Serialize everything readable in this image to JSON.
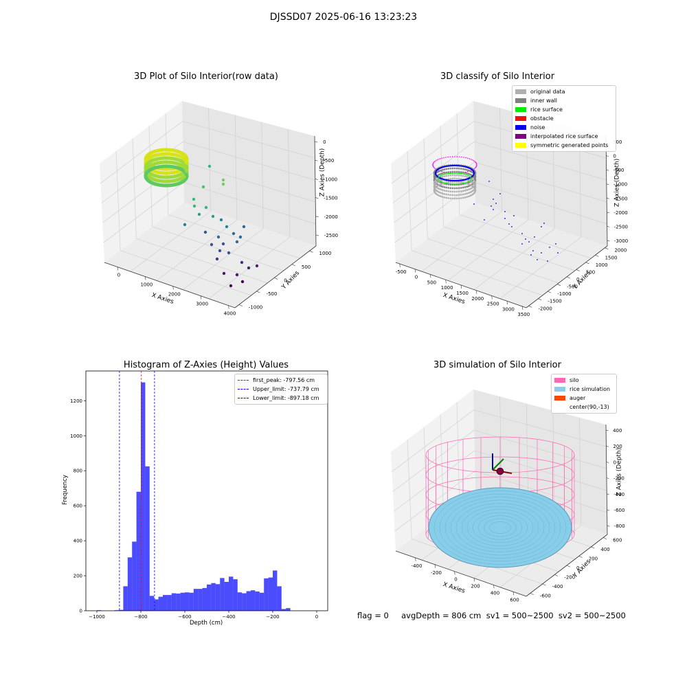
{
  "suptitle": "DJSSD07 2025-06-16 13:23:23",
  "panels": {
    "raw3d": {
      "title": "3D Plot of Silo Interior(row data)",
      "xlabel": "X Axies",
      "ylabel": "Y Axies",
      "zlabel": "Z Axies (Depth)",
      "xticks": [
        "0",
        "1000",
        "2000",
        "3000",
        "4000"
      ],
      "yticks": [
        "-1000",
        "-500",
        "0",
        "500",
        "1000"
      ],
      "zticks": [
        "0",
        "-500",
        "-1000",
        "-1500",
        "-2000",
        "-2500"
      ]
    },
    "classify3d": {
      "title": "3D classify of Silo Interior",
      "xlabel": "X Axies",
      "ylabel": "Y Axies",
      "zlabel": "Z Axies (Depth)",
      "xticks": [
        "-500",
        "0",
        "500",
        "1000",
        "1500",
        "2000",
        "2500",
        "3000",
        "3500"
      ],
      "yticks": [
        "-2000",
        "-1500",
        "-1000",
        "-500",
        "0",
        "500",
        "1000",
        "1500",
        "2000"
      ],
      "zticks": [
        "500",
        "0",
        "-500",
        "-1000",
        "-1500",
        "-2000",
        "-2500",
        "-3000"
      ],
      "legend": [
        {
          "label": "original data",
          "color": "#b0b0b0"
        },
        {
          "label": "inner wall",
          "color": "#808080"
        },
        {
          "label": "rice surface",
          "color": "#00ee00"
        },
        {
          "label": "obstacle",
          "color": "#ee1111"
        },
        {
          "label": "noise",
          "color": "#0000ee"
        },
        {
          "label": "interpolated rice surface",
          "color": "#800080"
        },
        {
          "label": "symmetric generated points",
          "color": "#ffff00"
        }
      ]
    },
    "histogram": {
      "title": "Histogram of Z-Axies (Height) Values",
      "xlabel": "Depth (cm)",
      "ylabel": "Frequency",
      "legend": [
        {
          "label": "first_peak: -797.56 cm",
          "color": "#ff0000"
        },
        {
          "label": "Upper_limit: -737.79 cm",
          "color": "#0000ff"
        },
        {
          "label": "Lower_limit: -897.18 cm",
          "color": "#0000ff"
        }
      ]
    },
    "simulation3d": {
      "title": "3D simulation of Silo Interior",
      "xlabel": "X Axies",
      "ylabel": "Y Axies",
      "zlabel": "Z Axies (Depth)",
      "xticks": [
        "-400",
        "-200",
        "0",
        "200",
        "400",
        "600"
      ],
      "yticks": [
        "-600",
        "-400",
        "-200",
        "0",
        "200",
        "400",
        "600"
      ],
      "zticks": [
        "400",
        "200",
        "0",
        "-200",
        "-400",
        "-600",
        "-800"
      ],
      "legend": [
        {
          "label": "silo",
          "color": "#ff69b4"
        },
        {
          "label": "rice simulation",
          "color": "#87ceeb"
        },
        {
          "label": "auger",
          "color": "#ff4500"
        },
        {
          "label": "center(90,-13)",
          "color": "#ffffff"
        }
      ]
    }
  },
  "footer": "flag = 0     avgDepth = 806 cm  sv1 = 500~2500  sv2 = 500~2500",
  "chart_data": [
    {
      "type": "scatter",
      "title": "3D Plot of Silo Interior(row data)",
      "xlabel": "X Axies",
      "ylabel": "Y Axies",
      "zlabel": "Z Axies (Depth)",
      "colormap": "viridis"
    },
    {
      "type": "scatter",
      "title": "3D classify of Silo Interior",
      "xlabel": "X Axies",
      "ylabel": "Y Axies",
      "zlabel": "Z Axies (Depth)",
      "series": [
        {
          "name": "original data"
        },
        {
          "name": "inner wall"
        },
        {
          "name": "rice surface"
        },
        {
          "name": "obstacle"
        },
        {
          "name": "noise"
        },
        {
          "name": "interpolated rice surface"
        },
        {
          "name": "symmetric generated points"
        }
      ]
    },
    {
      "type": "bar",
      "title": "Histogram of Z-Axies (Height) Values",
      "xlabel": "Depth (cm)",
      "ylabel": "Frequency",
      "xlim": [
        -1050,
        50
      ],
      "ylim": [
        0,
        1370
      ],
      "xticks": [
        -1000,
        -800,
        -600,
        -400,
        -200,
        0
      ],
      "yticks": [
        0,
        200,
        400,
        600,
        800,
        1000,
        1200
      ],
      "bar_color": "#0000ff",
      "bins": [
        {
          "x0": -1000,
          "x1": -980,
          "v": 3
        },
        {
          "x0": -920,
          "x1": -900,
          "v": 3
        },
        {
          "x0": -900,
          "x1": -880,
          "v": 5
        },
        {
          "x0": -880,
          "x1": -860,
          "v": 140
        },
        {
          "x0": -860,
          "x1": -840,
          "v": 305
        },
        {
          "x0": -840,
          "x1": -820,
          "v": 395
        },
        {
          "x0": -820,
          "x1": -800,
          "v": 680
        },
        {
          "x0": -800,
          "x1": -780,
          "v": 1305
        },
        {
          "x0": -780,
          "x1": -760,
          "v": 825
        },
        {
          "x0": -760,
          "x1": -740,
          "v": 85
        },
        {
          "x0": -740,
          "x1": -720,
          "v": 65
        },
        {
          "x0": -720,
          "x1": -700,
          "v": 80
        },
        {
          "x0": -700,
          "x1": -680,
          "v": 90
        },
        {
          "x0": -680,
          "x1": -660,
          "v": 90
        },
        {
          "x0": -660,
          "x1": -640,
          "v": 100
        },
        {
          "x0": -640,
          "x1": -620,
          "v": 98
        },
        {
          "x0": -620,
          "x1": -600,
          "v": 103
        },
        {
          "x0": -600,
          "x1": -580,
          "v": 105
        },
        {
          "x0": -580,
          "x1": -560,
          "v": 103
        },
        {
          "x0": -560,
          "x1": -540,
          "v": 125
        },
        {
          "x0": -540,
          "x1": -520,
          "v": 125
        },
        {
          "x0": -520,
          "x1": -500,
          "v": 130
        },
        {
          "x0": -500,
          "x1": -480,
          "v": 150
        },
        {
          "x0": -480,
          "x1": -460,
          "v": 158
        },
        {
          "x0": -460,
          "x1": -440,
          "v": 152
        },
        {
          "x0": -440,
          "x1": -420,
          "v": 187
        },
        {
          "x0": -420,
          "x1": -400,
          "v": 165
        },
        {
          "x0": -400,
          "x1": -380,
          "v": 195
        },
        {
          "x0": -380,
          "x1": -360,
          "v": 180
        },
        {
          "x0": -360,
          "x1": -340,
          "v": 105
        },
        {
          "x0": -340,
          "x1": -320,
          "v": 100
        },
        {
          "x0": -320,
          "x1": -300,
          "v": 112
        },
        {
          "x0": -300,
          "x1": -280,
          "v": 117
        },
        {
          "x0": -280,
          "x1": -260,
          "v": 110
        },
        {
          "x0": -260,
          "x1": -240,
          "v": 103
        },
        {
          "x0": -240,
          "x1": -220,
          "v": 185
        },
        {
          "x0": -220,
          "x1": -200,
          "v": 190
        },
        {
          "x0": -200,
          "x1": -180,
          "v": 230
        },
        {
          "x0": -180,
          "x1": -160,
          "v": 140
        },
        {
          "x0": -160,
          "x1": -140,
          "v": 10
        },
        {
          "x0": -140,
          "x1": -120,
          "v": 15
        }
      ],
      "vlines": [
        {
          "name": "first_peak: -797.56 cm",
          "x": -797.56,
          "color": "#ff0000"
        },
        {
          "name": "Upper_limit: -737.79 cm",
          "x": -737.79,
          "color": "#0000ff"
        },
        {
          "name": "Lower_limit: -897.18 cm",
          "x": -897.18,
          "color": "#0000ff"
        }
      ],
      "legend_position": "top-right"
    },
    {
      "type": "scatter",
      "title": "3D simulation of Silo Interior",
      "xlabel": "X Axies",
      "ylabel": "Y Axies",
      "zlabel": "Z Axies (Depth)",
      "series": [
        {
          "name": "silo"
        },
        {
          "name": "rice simulation"
        },
        {
          "name": "auger"
        },
        {
          "name": "center(90,-13)"
        }
      ]
    }
  ]
}
